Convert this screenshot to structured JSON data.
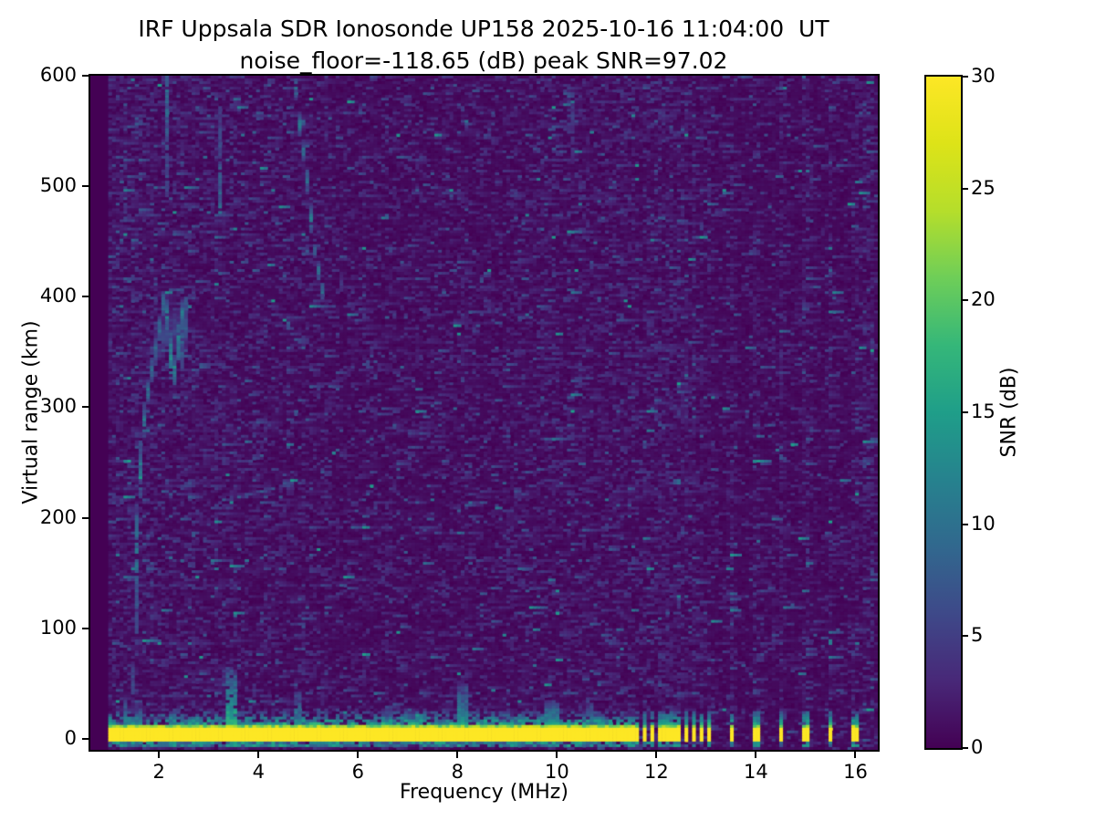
{
  "title": {
    "line1": "IRF Uppsala SDR Ionosonde UP158 2025-10-16 11:04:00  UT",
    "line2": "noise_floor=-118.65 (dB) peak SNR=97.02"
  },
  "chart_data": {
    "type": "heatmap",
    "title": "IRF Uppsala SDR Ionosonde UP158 2025-10-16 11:04:00  UT",
    "subtitle": "noise_floor=-118.65 (dB) peak SNR=97.02",
    "xlabel": "Frequency (MHz)",
    "ylabel": "Virtual range (km)",
    "xlim": [
      0.62,
      16.45
    ],
    "ylim": [
      -10,
      600
    ],
    "xticks": [
      2,
      4,
      6,
      8,
      10,
      12,
      14,
      16
    ],
    "yticks": [
      0,
      100,
      200,
      300,
      400,
      500,
      600
    ],
    "grid": false,
    "noise_floor_db": -118.65,
    "peak_snr_db": 97.02,
    "colorbar": {
      "label": "SNR (dB)",
      "ticks": [
        0,
        5,
        10,
        15,
        20,
        25,
        30
      ],
      "min": 0,
      "max": 30,
      "colormap": "viridis",
      "stops": [
        "#440154",
        "#482878",
        "#3e4989",
        "#31688e",
        "#26828e",
        "#1f9e89",
        "#35b779",
        "#6ece58",
        "#b5de2b",
        "#dde318",
        "#fde725"
      ]
    },
    "render": {
      "seed": 77,
      "grid": {
        "ncols": 203,
        "nrows": 244,
        "fmin": 0.98,
        "fmax": 16.45,
        "rmin": -10,
        "rmax": 600
      },
      "noise": {
        "bright_p": 0.0045,
        "mid_p": 0.028,
        "low_p": 0.11,
        "floor_p": 0.32,
        "persist_p": 0.42,
        "persist_decay": 0.82
      },
      "density_bands": [
        [
          1.35,
          1.5
        ],
        [
          1.9,
          1.35
        ],
        [
          3.6,
          1.2
        ],
        [
          5.8,
          1.0
        ],
        [
          9.0,
          0.92
        ],
        [
          10.2,
          1.05
        ],
        [
          11.68,
          1.12
        ],
        [
          99,
          0.45
        ]
      ],
      "right_cols": {
        "near": 0.06,
        "near_gain": 0.95,
        "mid": 0.15,
        "mid_gain": 0.3,
        "edge_freq": 16.28,
        "edge_halfw": 0.1,
        "edge_gain": 0.9
      },
      "ground_band": {
        "f_start": 0.98,
        "f_end": 11.62,
        "core": [
          -2.2,
          10.2
        ],
        "taper_top": 13.5,
        "fringe_top": 30,
        "below": [
          -7.8,
          -2.2
        ],
        "core_snr": 33
      },
      "pulses": {
        "freqs": [
          11.78,
          11.94,
          12.1,
          12.26,
          12.42,
          12.58,
          12.74,
          12.9,
          13.06,
          13.5,
          14.0,
          14.5,
          15.0,
          15.5,
          16.0
        ],
        "halfwidth": 0.05,
        "cap_top": 26
      },
      "plumes": [
        [
          1.32,
          0.07,
          36,
          12
        ],
        [
          1.62,
          0.08,
          30,
          12
        ],
        [
          2.32,
          0.08,
          28,
          11
        ],
        [
          3.46,
          0.09,
          64,
          17
        ],
        [
          4.82,
          0.07,
          42,
          12
        ],
        [
          6.55,
          0.06,
          26,
          9
        ],
        [
          8.12,
          0.1,
          50,
          13
        ],
        [
          9.9,
          0.14,
          34,
          15
        ],
        [
          10.68,
          0.08,
          34,
          11
        ]
      ],
      "traces": [
        {
          "name": "f-layer-echo",
          "amp": 13,
          "wf": 0.034,
          "wr": 7,
          "pts": [
            [
              1.5,
              45
            ],
            [
              1.53,
              120
            ],
            [
              1.56,
              185
            ],
            [
              1.61,
              235
            ],
            [
              1.67,
              275
            ],
            [
              1.75,
              308
            ],
            [
              1.85,
              332
            ],
            [
              1.95,
              355
            ],
            [
              2.04,
              380
            ],
            [
              2.11,
              398
            ]
          ]
        },
        {
          "name": "f-layer-cusp-hook",
          "amp": 15,
          "wf": 0.04,
          "wr": 8,
          "pts": [
            [
              2.11,
              398
            ],
            [
              2.19,
              372
            ],
            [
              2.28,
              325
            ],
            [
              2.37,
              350
            ],
            [
              2.45,
              386
            ],
            [
              2.52,
              374
            ]
          ]
        },
        {
          "name": "cusp-second-leg",
          "amp": 14,
          "wf": 0.045,
          "wr": 6,
          "pts": [
            [
              2.49,
              338
            ],
            [
              2.51,
              396
            ]
          ]
        },
        {
          "name": "cusp-halo",
          "amp": 7,
          "wf": 0.12,
          "wr": 18,
          "pts": [
            [
              2.0,
              360
            ],
            [
              2.3,
              370
            ],
            [
              2.5,
              368
            ]
          ]
        },
        {
          "name": "streak-1.05mhz",
          "amp": 14,
          "wf": 0.025,
          "wr": 4,
          "pts": [
            [
              1.05,
              462
            ],
            [
              1.06,
              600
            ]
          ]
        },
        {
          "name": "streak-2.15mhz",
          "amp": 12,
          "wf": 0.028,
          "wr": 4,
          "pts": [
            [
              2.13,
              478
            ],
            [
              2.16,
              600
            ]
          ]
        },
        {
          "name": "streak-2.65mhz",
          "amp": 8,
          "wf": 0.02,
          "wr": 4,
          "pts": [
            [
              2.64,
              498
            ],
            [
              2.66,
              542
            ]
          ]
        },
        {
          "name": "streak-3.1mhz",
          "amp": 8,
          "wf": 0.02,
          "wr": 4,
          "pts": [
            [
              3.1,
              460
            ],
            [
              3.12,
              548
            ]
          ]
        },
        {
          "name": "streak-3.25mhz",
          "amp": 11,
          "wf": 0.025,
          "wr": 4,
          "pts": [
            [
              3.23,
              476
            ],
            [
              3.26,
              600
            ]
          ]
        },
        {
          "name": "meander-5mhz",
          "amp": 12,
          "wf": 0.028,
          "wr": 5,
          "pts": [
            [
              4.74,
              597
            ],
            [
              4.82,
              558
            ],
            [
              4.93,
              524
            ],
            [
              5.01,
              492
            ],
            [
              5.1,
              452
            ],
            [
              5.21,
              423
            ],
            [
              5.3,
              402
            ]
          ]
        },
        {
          "name": "streak-5.75mhz",
          "amp": 8,
          "wf": 0.02,
          "wr": 4,
          "pts": [
            [
              5.76,
              524
            ],
            [
              5.77,
              549
            ]
          ]
        },
        {
          "name": "streak-10.3mhz",
          "amp": 7,
          "wf": 0.02,
          "wr": 4,
          "pts": [
            [
              10.3,
              522
            ],
            [
              10.31,
              572
            ]
          ]
        },
        {
          "name": "faint-diagonal-echo",
          "amp": 9,
          "wf": 0.05,
          "wr": 1.6,
          "pts": [
            [
              3.3,
              216
            ],
            [
              4.1,
              224
            ],
            [
              4.92,
              233
            ]
          ]
        }
      ]
    }
  }
}
